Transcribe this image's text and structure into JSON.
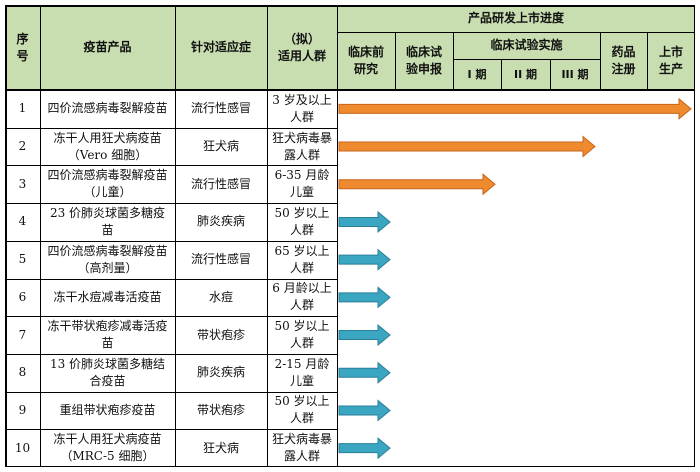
{
  "headers": {
    "seq": "序号",
    "product": "疫苗产品",
    "indication": "针对适应症",
    "population_top": "（拟）",
    "population_bottom": "适用人群",
    "progress": "产品研发上市进度",
    "preclinical": "临床前研究",
    "clinical_application": "临床试验申报",
    "clinical_trials": "临床试验实施",
    "phase1": "I 期",
    "phase2": "II 期",
    "phase3": "III 期",
    "registration": "药品注册",
    "market": "上市生产"
  },
  "colors": {
    "header_bg": "#c8ddb0",
    "orange_arrow": "#f08a2e",
    "blue_arrow": "#3aa6c2"
  },
  "rows": [
    {
      "no": "1",
      "product": "四价流感病毒裂解疫苗",
      "indication": "流行性感冒",
      "population": "3 岁及以上人群",
      "stage": "上市生产",
      "color": "orange"
    },
    {
      "no": "2",
      "product": "冻干人用狂犬病疫苗（Vero 细胞）",
      "indication": "狂犬病",
      "population": "狂犬病毒暴露人群",
      "stage": "药品注册",
      "color": "orange"
    },
    {
      "no": "3",
      "product": "四价流感病毒裂解疫苗（儿童）",
      "indication": "流行性感冒",
      "population": "6-35 月龄儿童",
      "stage": "III 期",
      "color": "orange"
    },
    {
      "no": "4",
      "product": "23 价肺炎球菌多糖疫苗",
      "indication": "肺炎疾病",
      "population": "50 岁以上人群",
      "stage": "临床前研究",
      "color": "blue"
    },
    {
      "no": "5",
      "product": "四价流感病毒裂解疫苗（高剂量）",
      "indication": "流行性感冒",
      "population": "65 岁以上人群",
      "stage": "临床前研究",
      "color": "blue"
    },
    {
      "no": "6",
      "product": "冻干水痘减毒活疫苗",
      "indication": "水痘",
      "population": "6 月龄以上人群",
      "stage": "临床前研究",
      "color": "blue"
    },
    {
      "no": "7",
      "product": "冻干带状疱疹减毒活疫苗",
      "indication": "带状疱疹",
      "population": "50 岁以上人群",
      "stage": "临床前研究",
      "color": "blue"
    },
    {
      "no": "8",
      "product": "13 价肺炎球菌多糖结合疫苗",
      "indication": "肺炎疾病",
      "population": "2-15 月龄儿童",
      "stage": "临床前研究",
      "color": "blue"
    },
    {
      "no": "9",
      "product": "重组带状疱疹疫苗",
      "indication": "带状疱疹",
      "population": "50 岁以上人群",
      "stage": "临床前研究",
      "color": "blue"
    },
    {
      "no": "10",
      "product": "冻干人用狂犬病疫苗（MRC-5 细胞）",
      "indication": "狂犬病",
      "population": "狂犬病毒暴露人群",
      "stage": "临床前研究",
      "color": "blue"
    }
  ]
}
